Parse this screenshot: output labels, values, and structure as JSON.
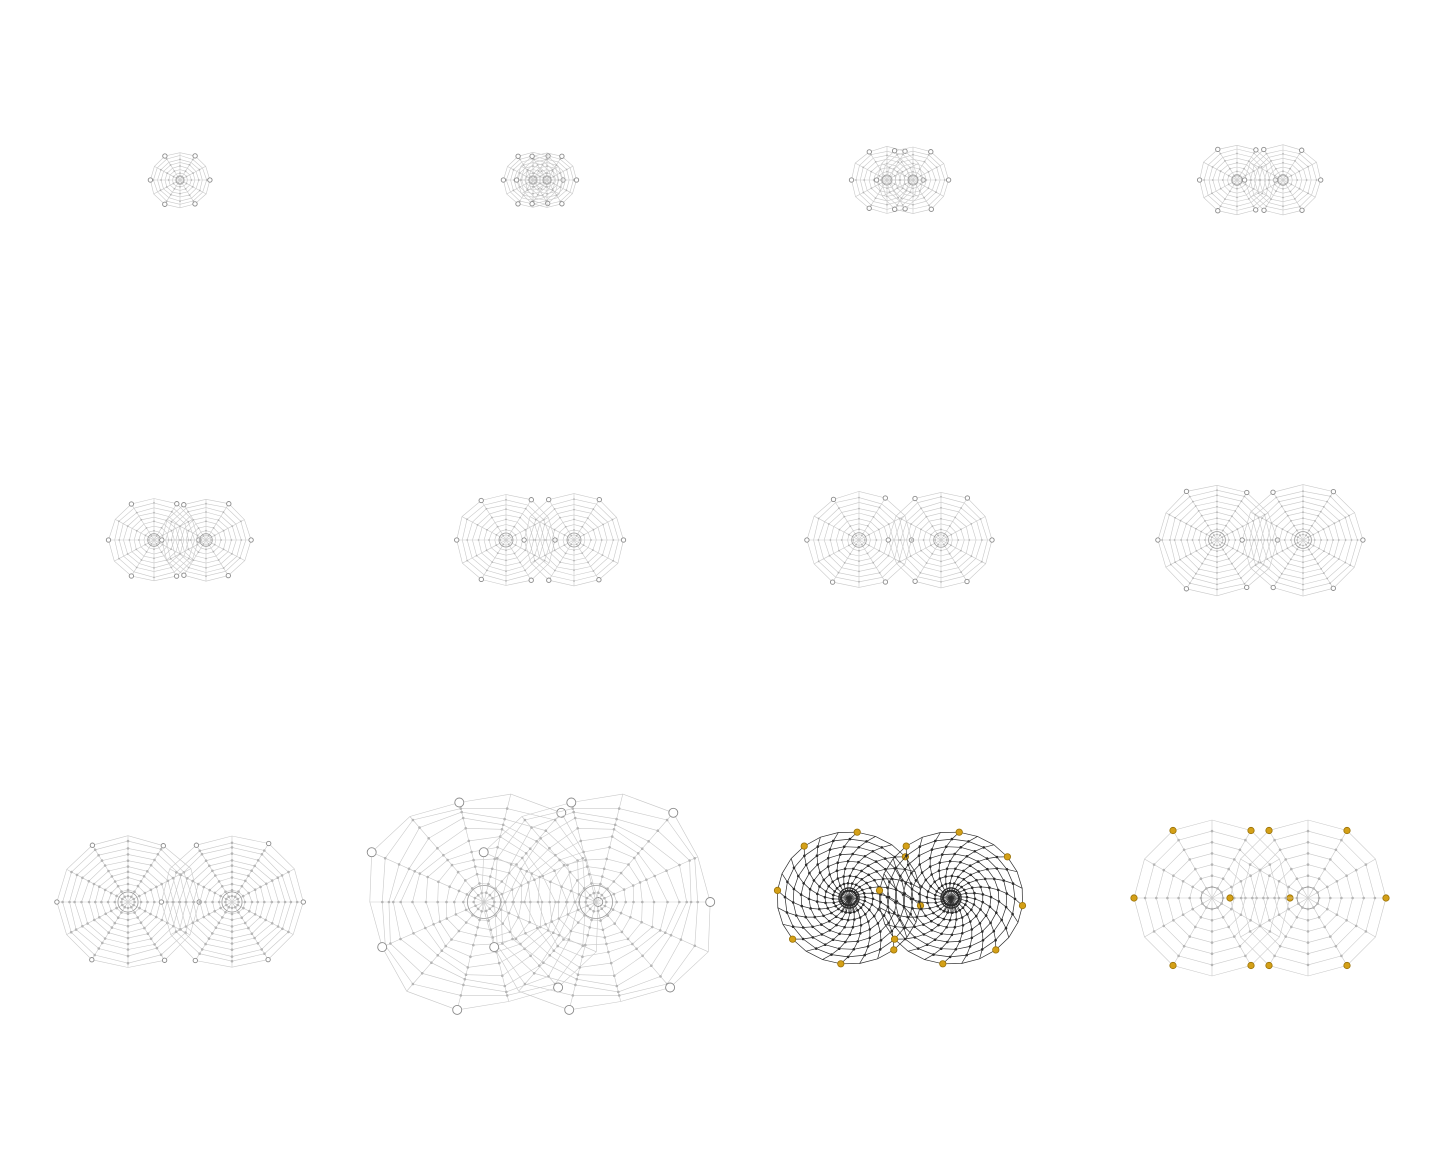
{
  "colors": {
    "background": "#ffffff",
    "faint_line": "#c9c9c9",
    "mid_line": "#9a9a9a",
    "dark_line": "#2b2b2b",
    "node_fill": "#b5b5b5",
    "anchor_gray": "#8a8a8a",
    "anchor_gold": "#d4a017",
    "anchor_gold_edge": "#9a7208"
  },
  "grid": {
    "rows": 3,
    "columns": 4
  },
  "panels": [
    {
      "id": "row1-col1",
      "webs": 1,
      "style": "faint",
      "anchor_color": "gray"
    },
    {
      "id": "row1-col2",
      "webs": 2,
      "style": "faint",
      "anchor_color": "gray"
    },
    {
      "id": "row1-col3",
      "webs": 2,
      "style": "faint",
      "anchor_color": "gray"
    },
    {
      "id": "row1-col4",
      "webs": 2,
      "style": "faint",
      "anchor_color": "gray"
    },
    {
      "id": "row2-col1",
      "webs": 2,
      "style": "faint",
      "anchor_color": "gray"
    },
    {
      "id": "row2-col2",
      "webs": 2,
      "style": "faint",
      "anchor_color": "gray"
    },
    {
      "id": "row2-col3",
      "webs": 2,
      "style": "faint",
      "anchor_color": "gray"
    },
    {
      "id": "row2-col4",
      "webs": 2,
      "style": "faint",
      "anchor_color": "gray"
    },
    {
      "id": "row3-col1",
      "webs": 2,
      "style": "faint",
      "anchor_color": "gray"
    },
    {
      "id": "row3-col2",
      "webs": 2,
      "style": "wavy",
      "anchor_color": "gray"
    },
    {
      "id": "row3-col3",
      "webs": 2,
      "style": "spiral-dark",
      "anchor_color": "gold"
    },
    {
      "id": "row3-col4",
      "webs": 2,
      "style": "straight",
      "anchor_color": "gold"
    }
  ]
}
